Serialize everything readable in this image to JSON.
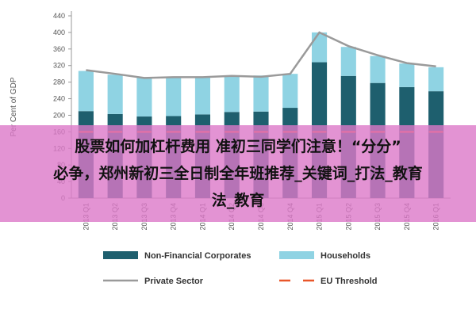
{
  "chart_data": {
    "type": "bar",
    "ylabel": "Per Cent of GDP",
    "ylim": [
      0,
      440
    ],
    "yticks": [
      0,
      40,
      80,
      120,
      160,
      200,
      240,
      280,
      320,
      360,
      400,
      440
    ],
    "categories": [
      "2013 Q1",
      "2013 Q2",
      "2013 Q3",
      "2013 Q4",
      "2014 Q1",
      "2014 Q2",
      "2014 Q3",
      "2014 Q4",
      "2015 Q1",
      "2015 Q2",
      "2015 Q3",
      "2015 Q4",
      "2016 Q1"
    ],
    "series": [
      {
        "name": "Non-Financial Corporates",
        "kind": "stacked-bar",
        "color": "#1e5f6e",
        "values": [
          210,
          203,
          197,
          198,
          202,
          208,
          209,
          218,
          328,
          295,
          278,
          268,
          258
        ]
      },
      {
        "name": "Households",
        "kind": "stacked-bar",
        "color": "#8fd3e3",
        "values": [
          97,
          95,
          95,
          95,
          90,
          88,
          87,
          82,
          72,
          70,
          65,
          57,
          58
        ]
      },
      {
        "name": "Private Sector",
        "kind": "line",
        "color": "#9a9a9a",
        "values": [
          309,
          300,
          290,
          292,
          292,
          295,
          293,
          300,
          400,
          367,
          345,
          326,
          318
        ]
      },
      {
        "name": "EU Threshold",
        "kind": "dashed-line",
        "color": "#e8562a",
        "values": [
          160,
          160,
          160,
          160,
          160,
          160,
          160,
          160,
          160,
          160,
          160,
          160,
          160
        ]
      }
    ],
    "legend": [
      "Non-Financial Corporates",
      "Households",
      "Private Sector",
      "EU Threshold"
    ],
    "legend_position": "bottom"
  },
  "banner": {
    "line1": "股票如何加杠杆费用 准初三同学们注意！“分分”",
    "line2": "必争，郑州新初三全日制全年班推荐_关键词_打法_教育",
    "line3": "法_教育"
  }
}
